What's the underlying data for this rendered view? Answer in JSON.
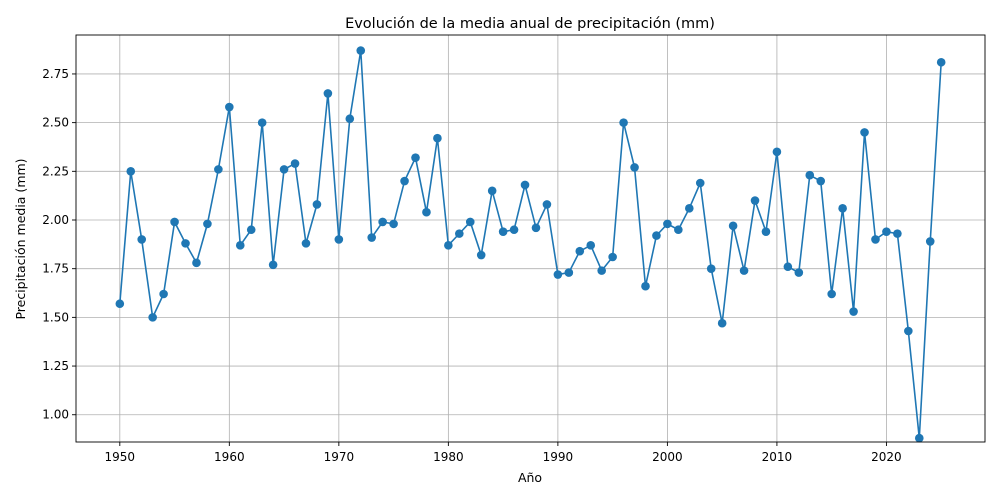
{
  "chart_data": {
    "type": "line",
    "title": "Evolución de la media anual de precipitación (mm)",
    "xlabel": "Año",
    "ylabel": "Precipitación media (mm)",
    "xlim": [
      1946,
      2029
    ],
    "ylim": [
      0.86,
      2.95
    ],
    "xticks": [
      1950,
      1960,
      1970,
      1980,
      1990,
      2000,
      2010,
      2020
    ],
    "yticks": [
      1.0,
      1.25,
      1.5,
      1.75,
      2.0,
      2.25,
      2.5,
      2.75
    ],
    "ytick_labels": [
      "1.00",
      "1.25",
      "1.50",
      "1.75",
      "2.00",
      "2.25",
      "2.50",
      "2.75"
    ],
    "grid": true,
    "color": "#1f77b4",
    "marker": "circle",
    "series": [
      {
        "x": [
          1950,
          1951,
          1952,
          1953,
          1954,
          1955,
          1956,
          1957,
          1958,
          1959,
          1960,
          1961,
          1962,
          1963,
          1964,
          1965,
          1966,
          1967,
          1968,
          1969,
          1970,
          1971,
          1972,
          1973,
          1974,
          1975,
          1976,
          1977,
          1978,
          1979,
          1980,
          1981,
          1982,
          1983,
          1984,
          1985,
          1986,
          1987,
          1988,
          1989,
          1990,
          1991,
          1992,
          1993,
          1994,
          1995,
          1996,
          1997,
          1998,
          1999,
          2000,
          2001,
          2002,
          2003,
          2004,
          2005,
          2006,
          2007,
          2008,
          2009,
          2010,
          2011,
          2012,
          2013,
          2014,
          2015,
          2016,
          2017,
          2018,
          2019,
          2020,
          2021,
          2022,
          2023,
          2024,
          2025
        ],
        "values": [
          1.57,
          2.25,
          1.9,
          1.5,
          1.62,
          1.99,
          1.88,
          1.78,
          1.98,
          2.26,
          2.58,
          1.87,
          1.95,
          2.5,
          1.77,
          2.26,
          2.29,
          1.88,
          2.08,
          2.65,
          1.9,
          2.52,
          2.87,
          1.91,
          1.99,
          1.98,
          2.2,
          2.32,
          2.04,
          2.42,
          1.87,
          1.93,
          1.99,
          1.82,
          2.15,
          1.94,
          1.95,
          2.18,
          1.96,
          2.08,
          1.72,
          1.73,
          1.84,
          1.87,
          1.74,
          1.81,
          2.5,
          2.27,
          1.66,
          1.92,
          1.98,
          1.95,
          2.06,
          2.19,
          1.75,
          1.47,
          1.97,
          1.74,
          2.1,
          1.94,
          2.35,
          1.76,
          1.73,
          2.23,
          2.2,
          1.62,
          2.06,
          1.53,
          2.45,
          1.9,
          1.94,
          1.93,
          1.43,
          0.88,
          1.89,
          2.81
        ]
      }
    ]
  }
}
